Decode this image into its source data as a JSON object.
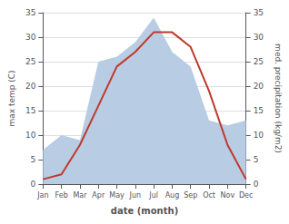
{
  "chart_data": {
    "type": "line",
    "xlabel": "date (month)",
    "ylabel": "max temp (C)",
    "y2label": "med. precipitation (kg/m2)",
    "categories": [
      "Jan",
      "Feb",
      "Mar",
      "Apr",
      "May",
      "Jun",
      "Jul",
      "Aug",
      "Sep",
      "Oct",
      "Nov",
      "Dec"
    ],
    "series": [
      {
        "type": "area",
        "axis": "y2",
        "color": "#b8cce4",
        "values": [
          7,
          10,
          9,
          25,
          26,
          29,
          34,
          27,
          24,
          13,
          12,
          13
        ]
      },
      {
        "type": "line",
        "color": "#c0392b",
        "values": [
          1,
          2,
          8,
          16,
          24,
          27,
          31,
          31,
          28,
          19,
          8,
          1
        ]
      }
    ],
    "ylim": [
      0,
      35
    ],
    "yticks": [
      0,
      5,
      10,
      15,
      20,
      25,
      30,
      35
    ],
    "y2lim": [
      0,
      35
    ],
    "y2ticks": [
      0,
      5,
      10,
      15,
      20,
      25,
      30,
      35
    ],
    "grid": true
  }
}
